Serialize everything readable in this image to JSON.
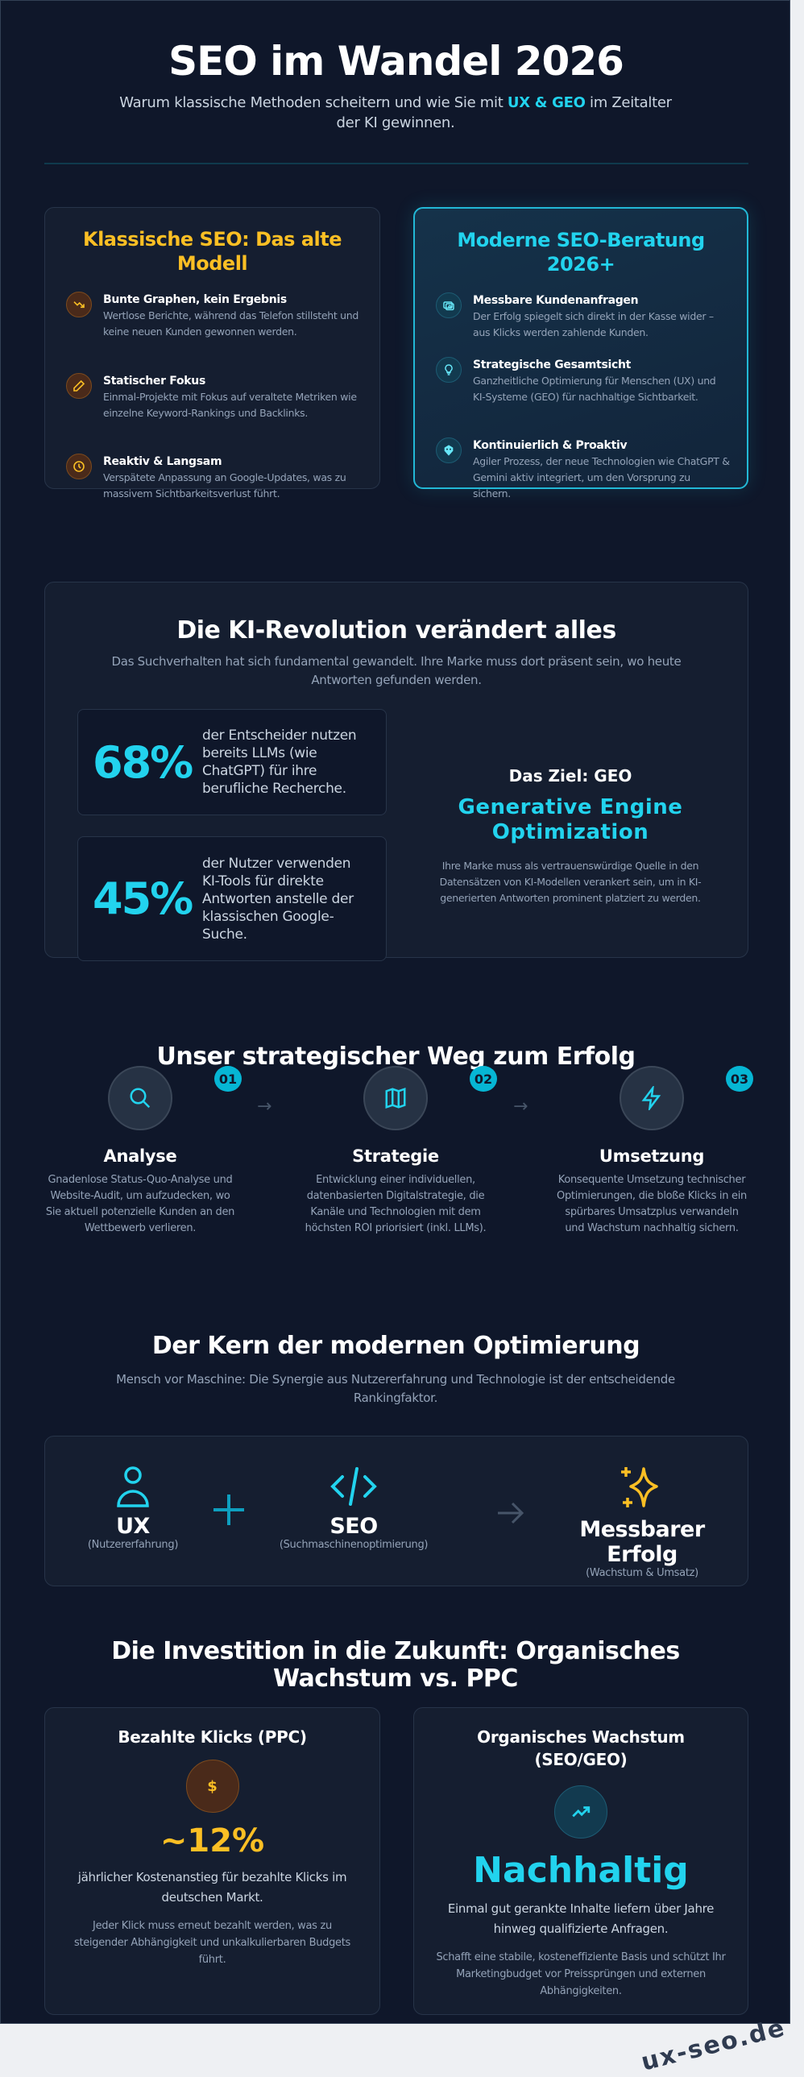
{
  "header": {
    "title": "SEO im Wandel 2026",
    "subtitle_pre": "Warum klassische Methoden scheitern und wie Sie mit ",
    "subtitle_highlight": "UX & GEO",
    "subtitle_post": " im Zeitalter der KI gewinnen."
  },
  "colors": {
    "background": "#0f172a",
    "accent_cyan": "#22d3ee",
    "accent_amber": "#fbbf24",
    "muted": "#94a3b8"
  },
  "classic": {
    "title": "Klassische SEO: Das alte Modell",
    "items": [
      {
        "icon": "trending-down-icon",
        "title": "Bunte Graphen, kein Ergebnis",
        "text": "Wertlose Berichte, während das Telefon stillsteht und keine neuen Kunden gewonnen werden."
      },
      {
        "icon": "pencil-icon",
        "title": "Statischer Fokus",
        "text": "Einmal-Projekte mit Fokus auf veraltete Metriken wie einzelne Keyword-Rankings und Backlinks."
      },
      {
        "icon": "clock-icon",
        "title": "Reaktiv & Langsam",
        "text": "Verspätete Anpassung an Google-Updates, was zu massivem Sichtbarkeitsverlust führt."
      }
    ]
  },
  "modern": {
    "title": "Moderne SEO-Beratung 2026+",
    "items": [
      {
        "icon": "money-icon",
        "title": "Messbare Kundenanfragen",
        "text": "Der Erfolg spiegelt sich direkt in der Kasse wider – aus Klicks werden zahlende Kunden."
      },
      {
        "icon": "lightbulb-icon",
        "title": "Strategische Gesamtsicht",
        "text": "Ganzheitliche Optimierung für Menschen (UX) und KI-Systeme (GEO) für nachhaltige Sichtbarkeit."
      },
      {
        "icon": "robot-icon",
        "title": "Kontinuierlich & Proaktiv",
        "text": "Agiler Prozess, der neue Technologien wie ChatGPT & Gemini aktiv integriert, um den Vorsprung zu sichern."
      }
    ]
  },
  "ki": {
    "title": "Die KI-Revolution verändert alles",
    "subtitle": "Das Suchverhalten hat sich fundamental gewandelt. Ihre Marke muss dort präsent sein, wo heute Antworten gefunden werden.",
    "stats": [
      {
        "value": "68%",
        "text": "der Entscheider nutzen bereits LLMs (wie ChatGPT) für ihre berufliche Recherche."
      },
      {
        "value": "45%",
        "text": "der Nutzer verwenden KI-Tools für direkte Antworten anstelle der klassischen Google-Suche."
      }
    ],
    "goal_label": "Das Ziel: GEO",
    "goal_title": "Generative Engine Optimization",
    "goal_text": "Ihre Marke muss als vertrauenswürdige Quelle in den Datensätzen von KI-Modellen verankert sein, um in KI-generierten Antworten prominent platziert zu werden."
  },
  "steps": {
    "title": "Unser strategischer Weg zum Erfolg",
    "items": [
      {
        "badge": "01",
        "icon": "search-icon",
        "title": "Analyse",
        "text": "Gnadenlose Status-Quo-Analyse und Website-Audit, um aufzudecken, wo Sie aktuell potenzielle Kunden an den Wettbewerb verlieren."
      },
      {
        "badge": "02",
        "icon": "map-icon",
        "title": "Strategie",
        "text": "Entwicklung einer individuellen, datenbasierten Digitalstrategie, die Kanäle und Technologien mit dem höchsten ROI priorisiert (inkl. LLMs)."
      },
      {
        "badge": "03",
        "icon": "lightning-icon",
        "title": "Umsetzung",
        "text": "Konsequente Umsetzung technischer Optimierungen, die bloße Klicks in ein spürbares Umsatzplus verwandeln und Wachstum nachhaltig sichern."
      }
    ],
    "arrow": "→"
  },
  "core": {
    "title": "Der Kern der modernen Optimierung",
    "subtitle": "Mensch vor Maschine: Die Synergie aus Nutzererfahrung und Technologie ist der entscheidende Rankingfaktor.",
    "items": [
      {
        "icon": "user-icon",
        "title": "UX",
        "sub": "(Nutzererfahrung)"
      },
      {
        "icon": "code-icon",
        "title": "SEO",
        "sub": "(Suchmaschinenoptimierung)"
      },
      {
        "icon": "sparkles-icon",
        "title": "Messbarer Erfolg",
        "sub": "(Wachstum & Umsatz)"
      }
    ]
  },
  "invest": {
    "title": "Die Investition in die Zukunft: Organisches Wachstum vs. PPC",
    "ppc": {
      "title": "Bezahlte Klicks (PPC)",
      "icon": "dollar-icon",
      "value": "~12%",
      "text": "jährlicher Kostenanstieg für bezahlte Klicks im deutschen Markt.",
      "note": "Jeder Klick muss erneut bezahlt werden, was zu steigender Abhängigkeit und unkalkulierbaren Budgets führt."
    },
    "organic": {
      "title": "Organisches Wachstum (SEO/GEO)",
      "icon": "trending-up-icon",
      "value": "Nachhaltig",
      "text": "Einmal gut gerankte Inhalte liefern über Jahre hinweg qualifizierte Anfragen.",
      "note": "Schafft eine stabile, kosteneffiziente Basis und schützt Ihr Marketingbudget vor Preissprüngen und externen Abhängigkeiten."
    }
  },
  "watermark": "ux-seo.de"
}
